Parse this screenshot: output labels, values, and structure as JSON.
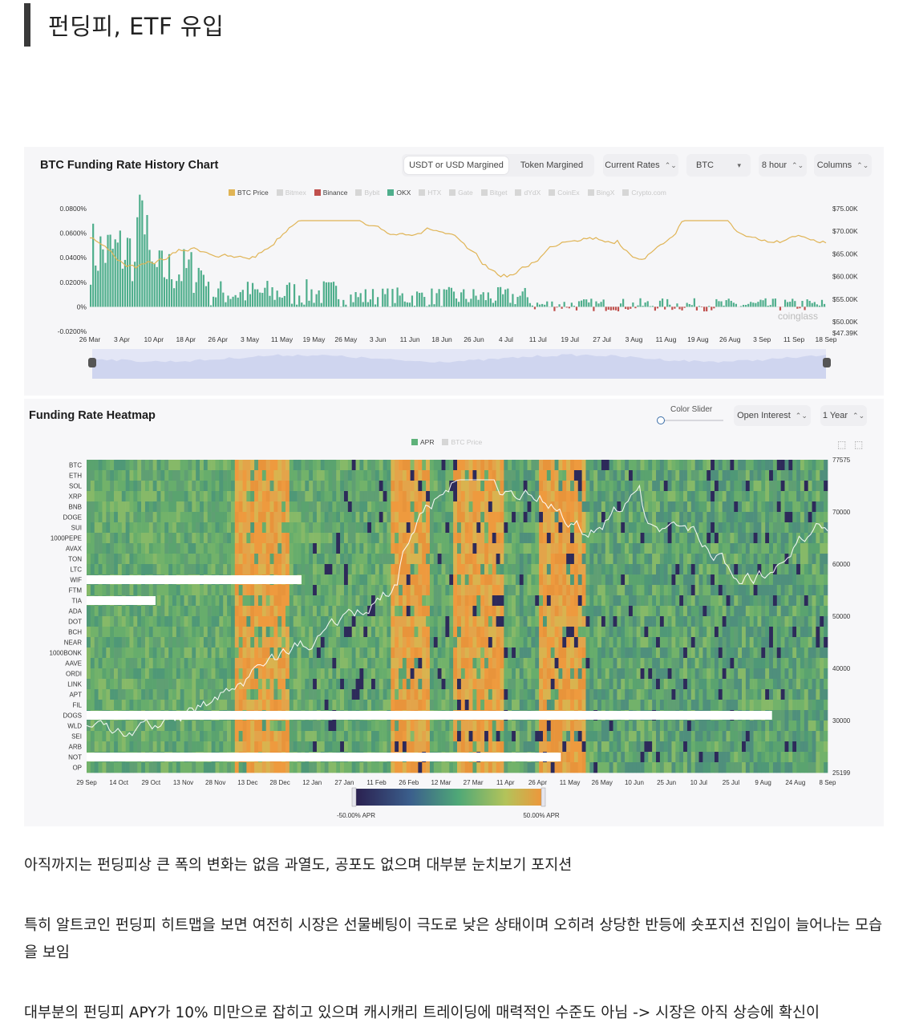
{
  "post": {
    "heading": "펀딩피, ETF 유입",
    "paragraphs": [
      "아직까지는 펀딩피상 큰 폭의 변화는 없음 과열도, 공포도 없으며 대부분 눈치보기 포지션",
      "특히 알트코인 펀딩피 히트맵을 보면 여전히 시장은 선물베팅이 극도로 낮은 상태이며 오히려 상당한 반등에 숏포지션 진입이 늘어나는 모습을 보임",
      "대부분의 펀딩피 APY가 10% 미만으로 잡히고 있으며 캐시캐리 트레이딩에 매력적인 수준도 아님 -> 시장은 아직 상승에 확신이"
    ]
  },
  "funding_chart": {
    "title": "BTC Funding Rate History Chart",
    "tabs": [
      "USDT or USD Margined",
      "Token Margined"
    ],
    "controls": [
      {
        "label": "Current Rates",
        "caret": "⌃⌄"
      },
      {
        "label": "BTC",
        "caret": "▾"
      },
      {
        "label": "8 hour",
        "caret": "⌃⌄"
      },
      {
        "label": "Columns",
        "caret": "⌃⌄"
      }
    ],
    "legend": [
      {
        "label": "BTC Price",
        "color": "#e0b455",
        "active": true
      },
      {
        "label": "Bitmex",
        "color": "#d6d6d6",
        "active": false
      },
      {
        "label": "Binance",
        "color": "#c0504d",
        "active": true
      },
      {
        "label": "Bybit",
        "color": "#d6d6d6",
        "active": false
      },
      {
        "label": "OKX",
        "color": "#4fae8c",
        "active": true
      },
      {
        "label": "HTX",
        "color": "#d6d6d6",
        "active": false
      },
      {
        "label": "Gate",
        "color": "#d6d6d6",
        "active": false
      },
      {
        "label": "Bitget",
        "color": "#d6d6d6",
        "active": false
      },
      {
        "label": "dYdX",
        "color": "#d6d6d6",
        "active": false
      },
      {
        "label": "CoinEx",
        "color": "#d6d6d6",
        "active": false
      },
      {
        "label": "BingX",
        "color": "#d6d6d6",
        "active": false
      },
      {
        "label": "Crypto.com",
        "color": "#d6d6d6",
        "active": false
      }
    ],
    "y_left": [
      "0.0800%",
      "0.0600%",
      "0.0400%",
      "0.0200%",
      "0%",
      "-0.0200%"
    ],
    "y_right": [
      "$75.00K",
      "$70.00K",
      "$65.00K",
      "$60.00K",
      "$55.00K",
      "$50.00K",
      "$47.39K"
    ],
    "x_labels": [
      "26 Mar",
      "3 Apr",
      "10 Apr",
      "18 Apr",
      "26 Apr",
      "3 May",
      "11 May",
      "19 May",
      "26 May",
      "3 Jun",
      "11 Jun",
      "18 Jun",
      "26 Jun",
      "4 Jul",
      "11 Jul",
      "19 Jul",
      "27 Jul",
      "3 Aug",
      "11 Aug",
      "19 Aug",
      "26 Aug",
      "3 Sep",
      "11 Sep",
      "18 Sep"
    ],
    "watermark": "coinglass"
  },
  "heatmap": {
    "title": "Funding Rate Heatmap",
    "slider_label": "Color Slider",
    "controls": [
      {
        "label": "Open Interest",
        "caret": "⌃⌄"
      },
      {
        "label": "1 Year",
        "caret": "⌃⌄"
      }
    ],
    "legend": [
      {
        "label": "APR",
        "color": "#5fb27a",
        "active": true
      },
      {
        "label": "BTC Price",
        "color": "#d6d6d6",
        "active": false
      }
    ],
    "rows": [
      "BTC",
      "ETH",
      "SOL",
      "XRP",
      "BNB",
      "DOGE",
      "SUI",
      "1000PEPE",
      "AVAX",
      "TON",
      "LTC",
      "WIF",
      "FTM",
      "TIA",
      "ADA",
      "DOT",
      "BCH",
      "NEAR",
      "1000BONK",
      "AAVE",
      "ORDI",
      "LINK",
      "APT",
      "FIL",
      "DOGS",
      "WLD",
      "SEI",
      "ARB",
      "NOT",
      "OP"
    ],
    "y_right": [
      "77575",
      "70000",
      "60000",
      "50000",
      "40000",
      "30000",
      "25199"
    ],
    "x_labels": [
      "29 Sep",
      "14 Oct",
      "29 Oct",
      "13 Nov",
      "28 Nov",
      "13 Dec",
      "28 Dec",
      "12 Jan",
      "27 Jan",
      "11 Feb",
      "26 Feb",
      "12 Mar",
      "27 Mar",
      "11 Apr",
      "26 Apr",
      "11 May",
      "26 May",
      "10 Jun",
      "25 Jun",
      "10 Jul",
      "25 Jul",
      "9 Aug",
      "24 Aug",
      "8 Sep"
    ],
    "scale_min": "-50.00% APR",
    "scale_max": "50.00% APR"
  }
}
